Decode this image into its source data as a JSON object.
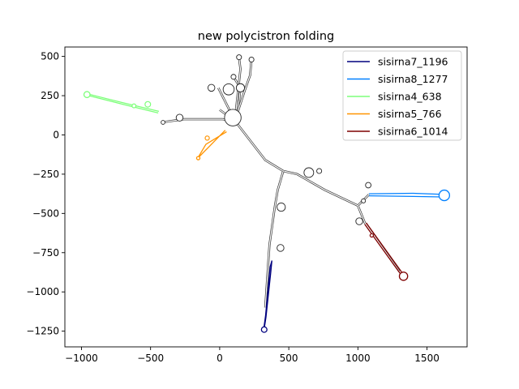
{
  "chart_data": {
    "type": "line",
    "title": "new polycistron folding",
    "xlabel": "",
    "ylabel": "",
    "xlim": [
      -1120,
      1790
    ],
    "ylim": [
      -1350,
      560
    ],
    "xticks": [
      -1000,
      -500,
      0,
      500,
      1000,
      1500
    ],
    "yticks": [
      500,
      250,
      0,
      -250,
      -500,
      -750,
      -1000,
      -1250
    ],
    "xtick_labels": [
      "−1000",
      "−500",
      "0",
      "500",
      "1000",
      "1500"
    ],
    "ytick_labels": [
      "500",
      "250",
      "0",
      "−250",
      "−500",
      "−750",
      "−1000",
      "−1250"
    ],
    "grid": false,
    "legend_position": "upper right",
    "backbone": {
      "color": "#000000",
      "paths": [
        [
          [
            110,
            90
          ],
          [
            330,
            -160
          ],
          [
            460,
            -230
          ],
          [
            560,
            -250
          ],
          [
            760,
            -350
          ],
          [
            1000,
            -450
          ],
          [
            1080,
            -380
          ]
        ],
        [
          [
            460,
            -230
          ],
          [
            420,
            -350
          ],
          [
            400,
            -450
          ],
          [
            360,
            -700
          ],
          [
            330,
            -1100
          ]
        ],
        [
          [
            1000,
            -450
          ],
          [
            1050,
            -560
          ],
          [
            1300,
            -870
          ]
        ],
        [
          [
            110,
            90
          ],
          [
            20,
            100
          ],
          [
            -260,
            100
          ],
          [
            -420,
            80
          ]
        ],
        [
          [
            110,
            90
          ],
          [
            140,
            220
          ],
          [
            150,
            300
          ],
          [
            100,
            370
          ]
        ],
        [
          [
            110,
            90
          ],
          [
            180,
            280
          ],
          [
            220,
            380
          ],
          [
            230,
            480
          ]
        ],
        [
          [
            110,
            90
          ],
          [
            -10,
            300
          ]
        ],
        [
          [
            110,
            90
          ],
          [
            0,
            160
          ]
        ],
        [
          [
            110,
            90
          ],
          [
            150,
            420
          ],
          [
            140,
            490
          ]
        ]
      ],
      "loops": [
        {
          "x": 95,
          "y": 110,
          "r": 60
        },
        {
          "x": 65,
          "y": 290,
          "r": 40
        },
        {
          "x": -60,
          "y": 300,
          "r": 25
        },
        {
          "x": 150,
          "y": 300,
          "r": 30
        },
        {
          "x": 230,
          "y": 480,
          "r": 18
        },
        {
          "x": 140,
          "y": 495,
          "r": 18
        },
        {
          "x": 100,
          "y": 370,
          "r": 18
        },
        {
          "x": -290,
          "y": 110,
          "r": 25
        },
        {
          "x": -410,
          "y": 80,
          "r": 14
        },
        {
          "x": 645,
          "y": -240,
          "r": 35
        },
        {
          "x": 720,
          "y": -230,
          "r": 18
        },
        {
          "x": 1075,
          "y": -320,
          "r": 20
        },
        {
          "x": 445,
          "y": -460,
          "r": 30
        },
        {
          "x": 440,
          "y": -720,
          "r": 25
        },
        {
          "x": 1010,
          "y": -550,
          "r": 25
        },
        {
          "x": 1040,
          "y": -420,
          "r": 15
        }
      ]
    },
    "series": [
      {
        "name": "sisirna7_1196",
        "color": "#00007f",
        "points": [
          [
            378,
            -800
          ],
          [
            365,
            -840
          ],
          [
            332,
            -1150
          ],
          [
            318,
            -1240
          ],
          [
            322,
            -1235
          ],
          [
            335,
            -1160
          ],
          [
            370,
            -870
          ],
          [
            378,
            -800
          ]
        ],
        "loop": {
          "x": 322,
          "y": -1240,
          "r": 20
        }
      },
      {
        "name": "sisirna8_1277",
        "color": "#0080ff",
        "points": [
          [
            1080,
            -375
          ],
          [
            1400,
            -372
          ],
          [
            1600,
            -378
          ],
          [
            1600,
            -395
          ],
          [
            1400,
            -392
          ],
          [
            1080,
            -388
          ]
        ],
        "loop": {
          "x": 1625,
          "y": -385,
          "r": 38
        }
      },
      {
        "name": "sisirna4_638",
        "color": "#7dff7a",
        "points": [
          [
            -440,
            150
          ],
          [
            -700,
            205
          ],
          [
            -960,
            262
          ],
          [
            -955,
            252
          ],
          [
            -700,
            195
          ],
          [
            -445,
            140
          ]
        ],
        "loop": {
          "x": -960,
          "y": 257,
          "r": 22
        },
        "extra_loops": [
          {
            "x": -520,
            "y": 195,
            "r": 20
          },
          {
            "x": -620,
            "y": 185,
            "r": 14
          }
        ]
      },
      {
        "name": "sisirna5_766",
        "color": "#ff9400",
        "points": [
          [
            50,
            20
          ],
          [
            -100,
            -60
          ],
          [
            -160,
            -150
          ],
          [
            40,
            30
          ]
        ],
        "loop": {
          "x": -155,
          "y": -148,
          "r": 12
        },
        "extra_loops": [
          {
            "x": -90,
            "y": -20,
            "r": 15
          }
        ]
      },
      {
        "name": "sisirna6_1014",
        "color": "#7f0000",
        "points": [
          [
            1050,
            -570
          ],
          [
            1140,
            -680
          ],
          [
            1320,
            -900
          ],
          [
            1330,
            -890
          ],
          [
            1150,
            -670
          ],
          [
            1060,
            -560
          ]
        ],
        "loop": {
          "x": 1330,
          "y": -900,
          "r": 30
        },
        "extra_loops": [
          {
            "x": 1100,
            "y": -640,
            "r": 12
          }
        ]
      }
    ]
  }
}
